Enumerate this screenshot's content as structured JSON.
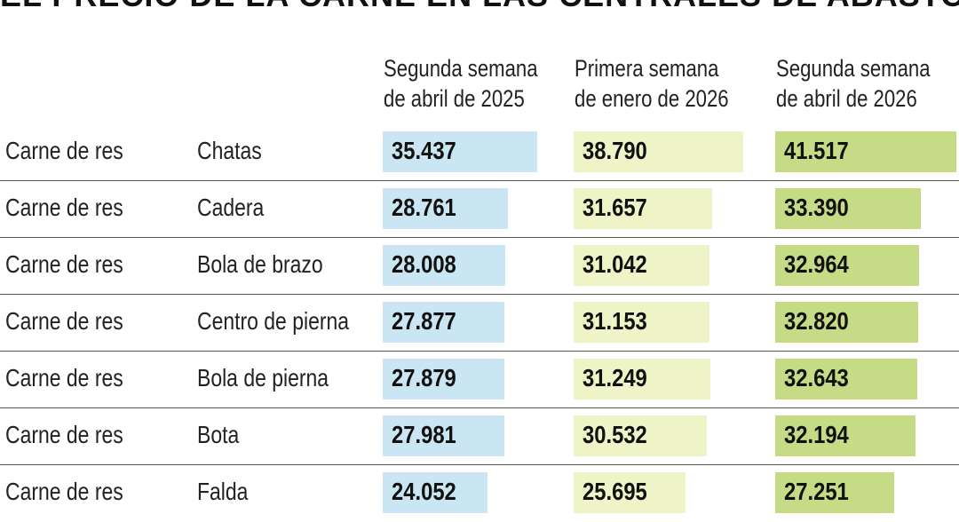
{
  "header": {
    "title": "EL PRECIO DE LA CARNE EN LAS CENTRALES DE ABASTO"
  },
  "columns": [
    {
      "line1": "Segunda semana",
      "line2": "de abril de 2025"
    },
    {
      "line1": "Primera semana",
      "line2": "de enero de 2026"
    },
    {
      "line1": "Segunda semana",
      "line2": "de abril de 2026"
    }
  ],
  "colors": {
    "series_1": "#c9e6f2",
    "series_2": "#eef3c8",
    "series_3": "#c6db86"
  },
  "chart_data": {
    "type": "table",
    "title": "EL PRECIO DE LA CARNE EN LAS CENTRALES DE ABASTO",
    "categories": [
      "Chatas",
      "Cadera",
      "Bola de brazo",
      "Centro de pierna",
      "Bola de pierna",
      "Bota",
      "Falda"
    ],
    "group_labels": [
      "Carne de res",
      "Carne de res",
      "Carne de res",
      "Carne de res",
      "Carne de res",
      "Carne de res",
      "Carne de res"
    ],
    "series": [
      {
        "name": "Segunda semana de abril de 2025",
        "values": [
          35437,
          28761,
          28008,
          27877,
          27879,
          27981,
          24052
        ],
        "labels": [
          "35.437",
          "28.761",
          "28.008",
          "27.877",
          "27.879",
          "27.981",
          "24.052"
        ]
      },
      {
        "name": "Primera semana de enero de 2026",
        "values": [
          38790,
          31657,
          31042,
          31153,
          31249,
          30532,
          25695
        ],
        "labels": [
          "38.790",
          "31.657",
          "31.042",
          "31.153",
          "31.249",
          "30.532",
          "25.695"
        ]
      },
      {
        "name": "Segunda semana de abril de 2026",
        "values": [
          41517,
          33390,
          32964,
          32820,
          32643,
          32194,
          27251
        ],
        "labels": [
          "41.517",
          "33.390",
          "32.964",
          "32.820",
          "32.643",
          "32.194",
          "27.251"
        ]
      }
    ]
  }
}
